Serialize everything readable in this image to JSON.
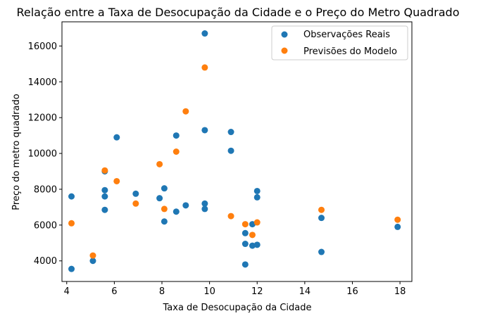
{
  "chart_data": {
    "type": "scatter",
    "title": "Relação entre a Taxa de Desocupação da Cidade e o Preço do Metro Quadrado",
    "xlabel": "Taxa de Desocupação da Cidade",
    "ylabel": "Preço do metro quadrado",
    "xlim": [
      3.8,
      18.5
    ],
    "ylim": [
      2850,
      17350
    ],
    "xticks": [
      4,
      6,
      8,
      10,
      12,
      14,
      16,
      18
    ],
    "yticks": [
      4000,
      6000,
      8000,
      10000,
      12000,
      14000,
      16000
    ],
    "grid": false,
    "legend_position": "top-right",
    "series": [
      {
        "name": "Observações Reais",
        "color": "#1f77b4",
        "points": [
          [
            4.2,
            3550
          ],
          [
            4.2,
            7600
          ],
          [
            5.1,
            4000
          ],
          [
            5.6,
            6850
          ],
          [
            5.6,
            7600
          ],
          [
            5.6,
            7950
          ],
          [
            5.6,
            9000
          ],
          [
            6.1,
            10900
          ],
          [
            6.9,
            7750
          ],
          [
            7.9,
            7500
          ],
          [
            8.1,
            8050
          ],
          [
            8.1,
            6200
          ],
          [
            8.6,
            6750
          ],
          [
            8.6,
            11000
          ],
          [
            9.0,
            7100
          ],
          [
            9.8,
            16700
          ],
          [
            9.8,
            11300
          ],
          [
            9.8,
            7200
          ],
          [
            9.8,
            6900
          ],
          [
            10.9,
            11200
          ],
          [
            10.9,
            10150
          ],
          [
            11.5,
            5550
          ],
          [
            11.5,
            4950
          ],
          [
            11.5,
            3800
          ],
          [
            11.8,
            6050
          ],
          [
            11.8,
            4850
          ],
          [
            12.0,
            7900
          ],
          [
            12.0,
            7550
          ],
          [
            12.0,
            4900
          ],
          [
            14.7,
            6400
          ],
          [
            14.7,
            4500
          ],
          [
            17.9,
            5900
          ]
        ]
      },
      {
        "name": "Previsões do Modelo",
        "color": "#ff7f0e",
        "points": [
          [
            4.2,
            6100
          ],
          [
            5.1,
            4300
          ],
          [
            5.6,
            9050
          ],
          [
            6.1,
            8450
          ],
          [
            6.9,
            7200
          ],
          [
            7.9,
            9400
          ],
          [
            8.1,
            6900
          ],
          [
            8.6,
            10100
          ],
          [
            9.0,
            12350
          ],
          [
            9.8,
            14800
          ],
          [
            10.9,
            6500
          ],
          [
            11.5,
            6050
          ],
          [
            11.8,
            5450
          ],
          [
            12.0,
            6150
          ],
          [
            14.7,
            6850
          ],
          [
            17.9,
            6300
          ]
        ]
      }
    ]
  }
}
